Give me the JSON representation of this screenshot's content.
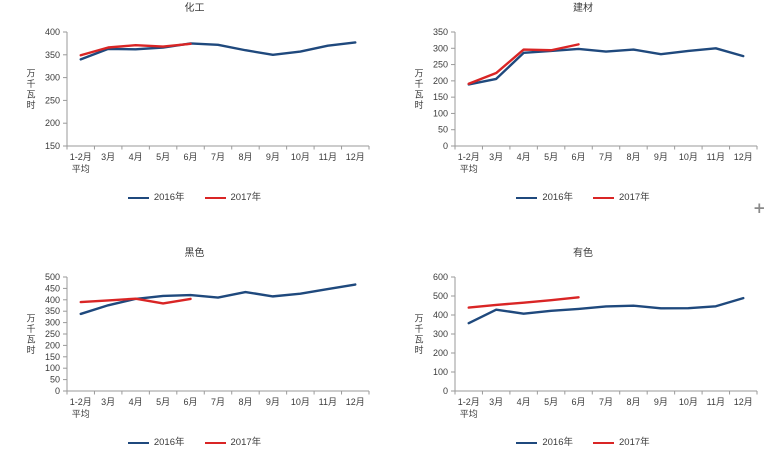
{
  "window": {
    "background": "#ffffff"
  },
  "styles": {
    "series_2016_color": "#1F497D",
    "series_2017_color": "#D92525",
    "axis_color": "#9a9a9a",
    "text_color": "#3b3b3b"
  },
  "cursor": {
    "glyph": "+"
  },
  "legend": {
    "label_2016": "2016年",
    "label_2017": "2017年",
    "position": "bottom"
  },
  "chart_data": [
    {
      "type": "line",
      "title": "化工",
      "ylabel": "万千瓦时",
      "xlabel": "",
      "grid": false,
      "legend_position": "bottom",
      "categories": [
        "1-2月\n平均",
        "3月",
        "4月",
        "5月",
        "6月",
        "7月",
        "8月",
        "9月",
        "10月",
        "11月",
        "12月"
      ],
      "ylim": [
        150,
        400
      ],
      "yticks": [
        150,
        200,
        250,
        300,
        350,
        400
      ],
      "series": [
        {
          "name": "2016年",
          "color": "#1F497D",
          "values": [
            340,
            363,
            362,
            366,
            375,
            372,
            360,
            350,
            357,
            370,
            377
          ]
        },
        {
          "name": "2017年",
          "color": "#D92525",
          "values": [
            349,
            366,
            371,
            368,
            374
          ]
        }
      ]
    },
    {
      "type": "line",
      "title": "建材",
      "ylabel": "万千瓦时",
      "xlabel": "",
      "grid": false,
      "legend_position": "bottom",
      "categories": [
        "1-2月\n平均",
        "3月",
        "4月",
        "5月",
        "6月",
        "7月",
        "8月",
        "9月",
        "10月",
        "11月",
        "12月"
      ],
      "ylim": [
        0,
        350
      ],
      "yticks": [
        0,
        50,
        100,
        150,
        200,
        250,
        300,
        350
      ],
      "series": [
        {
          "name": "2016年",
          "color": "#1F497D",
          "values": [
            189,
            206,
            286,
            292,
            298,
            290,
            296,
            282,
            292,
            300,
            276
          ]
        },
        {
          "name": "2017年",
          "color": "#D92525",
          "values": [
            191,
            224,
            296,
            294,
            312
          ]
        }
      ]
    },
    {
      "type": "line",
      "title": "黑色",
      "ylabel": "万千瓦时",
      "xlabel": "",
      "grid": false,
      "legend_position": "bottom",
      "categories": [
        "1-2月\n平均",
        "3月",
        "4月",
        "5月",
        "6月",
        "7月",
        "8月",
        "9月",
        "10月",
        "11月",
        "12月"
      ],
      "ylim": [
        0,
        500
      ],
      "yticks": [
        0,
        50,
        100,
        150,
        200,
        250,
        300,
        350,
        400,
        450,
        500
      ],
      "series": [
        {
          "name": "2016年",
          "color": "#1F497D",
          "values": [
            338,
            376,
            404,
            417,
            421,
            410,
            434,
            415,
            427,
            447,
            467
          ]
        },
        {
          "name": "2017年",
          "color": "#D92525",
          "values": [
            390,
            397,
            405,
            384,
            404
          ]
        }
      ]
    },
    {
      "type": "line",
      "title": "有色",
      "ylabel": "万千瓦时",
      "xlabel": "",
      "grid": false,
      "legend_position": "bottom",
      "categories": [
        "1-2月\n平均",
        "3月",
        "4月",
        "5月",
        "6月",
        "7月",
        "8月",
        "9月",
        "10月",
        "11月",
        "12月"
      ],
      "ylim": [
        0,
        600
      ],
      "yticks": [
        0,
        100,
        200,
        300,
        400,
        500,
        600
      ],
      "series": [
        {
          "name": "2016年",
          "color": "#1F497D",
          "values": [
            357,
            428,
            407,
            422,
            432,
            445,
            449,
            435,
            436,
            446,
            489
          ]
        },
        {
          "name": "2017年",
          "color": "#D92525",
          "values": [
            439,
            453,
            465,
            478,
            493
          ]
        }
      ]
    }
  ]
}
